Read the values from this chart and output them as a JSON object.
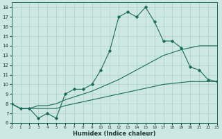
{
  "xlabel": "Humidex (Indice chaleur)",
  "xlim": [
    0,
    23
  ],
  "ylim": [
    6,
    18.5
  ],
  "yticks": [
    6,
    7,
    8,
    9,
    10,
    11,
    12,
    13,
    14,
    15,
    16,
    17,
    18
  ],
  "xticks": [
    0,
    1,
    2,
    3,
    4,
    5,
    6,
    7,
    8,
    9,
    10,
    11,
    12,
    13,
    14,
    15,
    16,
    17,
    18,
    19,
    20,
    21,
    22,
    23
  ],
  "bg_color": "#cde8e2",
  "line_color": "#1a6b5a",
  "grid_color": "#aacfc8",
  "line1_x": [
    0,
    1,
    2,
    3,
    4,
    5,
    6,
    7,
    8,
    9,
    10,
    11,
    12,
    13,
    14,
    15,
    16,
    17,
    18,
    19,
    20,
    21,
    22,
    23
  ],
  "line1_y": [
    8.0,
    7.5,
    7.5,
    6.5,
    7.0,
    6.5,
    9.0,
    9.5,
    9.5,
    10.0,
    11.5,
    13.5,
    17.0,
    17.5,
    17.0,
    18.0,
    16.5,
    14.5,
    14.5,
    13.8,
    11.8,
    11.5,
    10.5,
    10.3
  ],
  "line2_x": [
    0,
    1,
    2,
    3,
    4,
    5,
    6,
    7,
    8,
    9,
    10,
    11,
    12,
    13,
    14,
    15,
    16,
    17,
    18,
    19,
    20,
    21,
    22,
    23
  ],
  "line2_y": [
    8.0,
    7.5,
    7.5,
    7.8,
    7.8,
    8.0,
    8.4,
    8.7,
    9.0,
    9.3,
    9.7,
    10.1,
    10.5,
    11.0,
    11.5,
    12.0,
    12.5,
    13.0,
    13.3,
    13.6,
    13.8,
    14.0,
    14.0,
    14.0
  ],
  "line3_x": [
    0,
    1,
    2,
    3,
    4,
    5,
    6,
    7,
    8,
    9,
    10,
    11,
    12,
    13,
    14,
    15,
    16,
    17,
    18,
    19,
    20,
    21,
    22,
    23
  ],
  "line3_y": [
    8.0,
    7.5,
    7.5,
    7.5,
    7.5,
    7.5,
    7.8,
    8.0,
    8.2,
    8.4,
    8.6,
    8.8,
    9.0,
    9.2,
    9.4,
    9.6,
    9.8,
    10.0,
    10.1,
    10.2,
    10.3,
    10.3,
    10.3,
    10.3
  ]
}
